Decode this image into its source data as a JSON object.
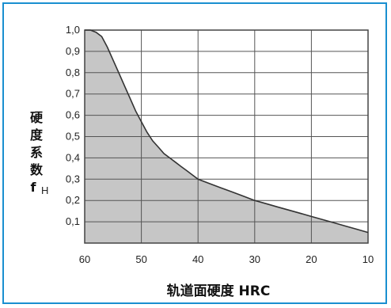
{
  "chart_data": {
    "type": "area",
    "title": "",
    "xlabel": "轨道面硬度 HRC",
    "ylabel_chars": [
      "硬",
      "度",
      "系",
      "数"
    ],
    "ylabel_symbol": "f",
    "ylabel_subscript": "H",
    "xlim": [
      60,
      10
    ],
    "ylim": [
      0,
      1.0
    ],
    "x_ticks": [
      "60",
      "50",
      "40",
      "30",
      "20",
      "10"
    ],
    "x_tick_values": [
      60,
      50,
      40,
      30,
      20,
      10
    ],
    "y_ticks": [
      "1,0",
      "0,9",
      "0,8",
      "0,7",
      "0,6",
      "0,5",
      "0,4",
      "0,3",
      "0,2",
      "0,1"
    ],
    "y_tick_values": [
      1.0,
      0.9,
      0.8,
      0.7,
      0.6,
      0.5,
      0.4,
      0.3,
      0.2,
      0.1
    ],
    "grid": true,
    "fill_color": "#c6c6c6",
    "line_color": "#333333",
    "border_color": "#1a8fd0",
    "series": [
      {
        "x": [
          60,
          59,
          58,
          57,
          56,
          55,
          54,
          53,
          52,
          51,
          50,
          49,
          48,
          47,
          46,
          45,
          44,
          43,
          42,
          41,
          40,
          38,
          36,
          34,
          32,
          30,
          28,
          26,
          24,
          22,
          20,
          18,
          16,
          14,
          12,
          10
        ],
        "y": [
          1.0,
          1.0,
          0.99,
          0.97,
          0.92,
          0.86,
          0.8,
          0.74,
          0.68,
          0.62,
          0.57,
          0.52,
          0.48,
          0.45,
          0.42,
          0.4,
          0.38,
          0.36,
          0.34,
          0.32,
          0.3,
          0.28,
          0.26,
          0.24,
          0.22,
          0.2,
          0.185,
          0.17,
          0.155,
          0.14,
          0.125,
          0.11,
          0.095,
          0.08,
          0.065,
          0.05
        ]
      }
    ]
  }
}
